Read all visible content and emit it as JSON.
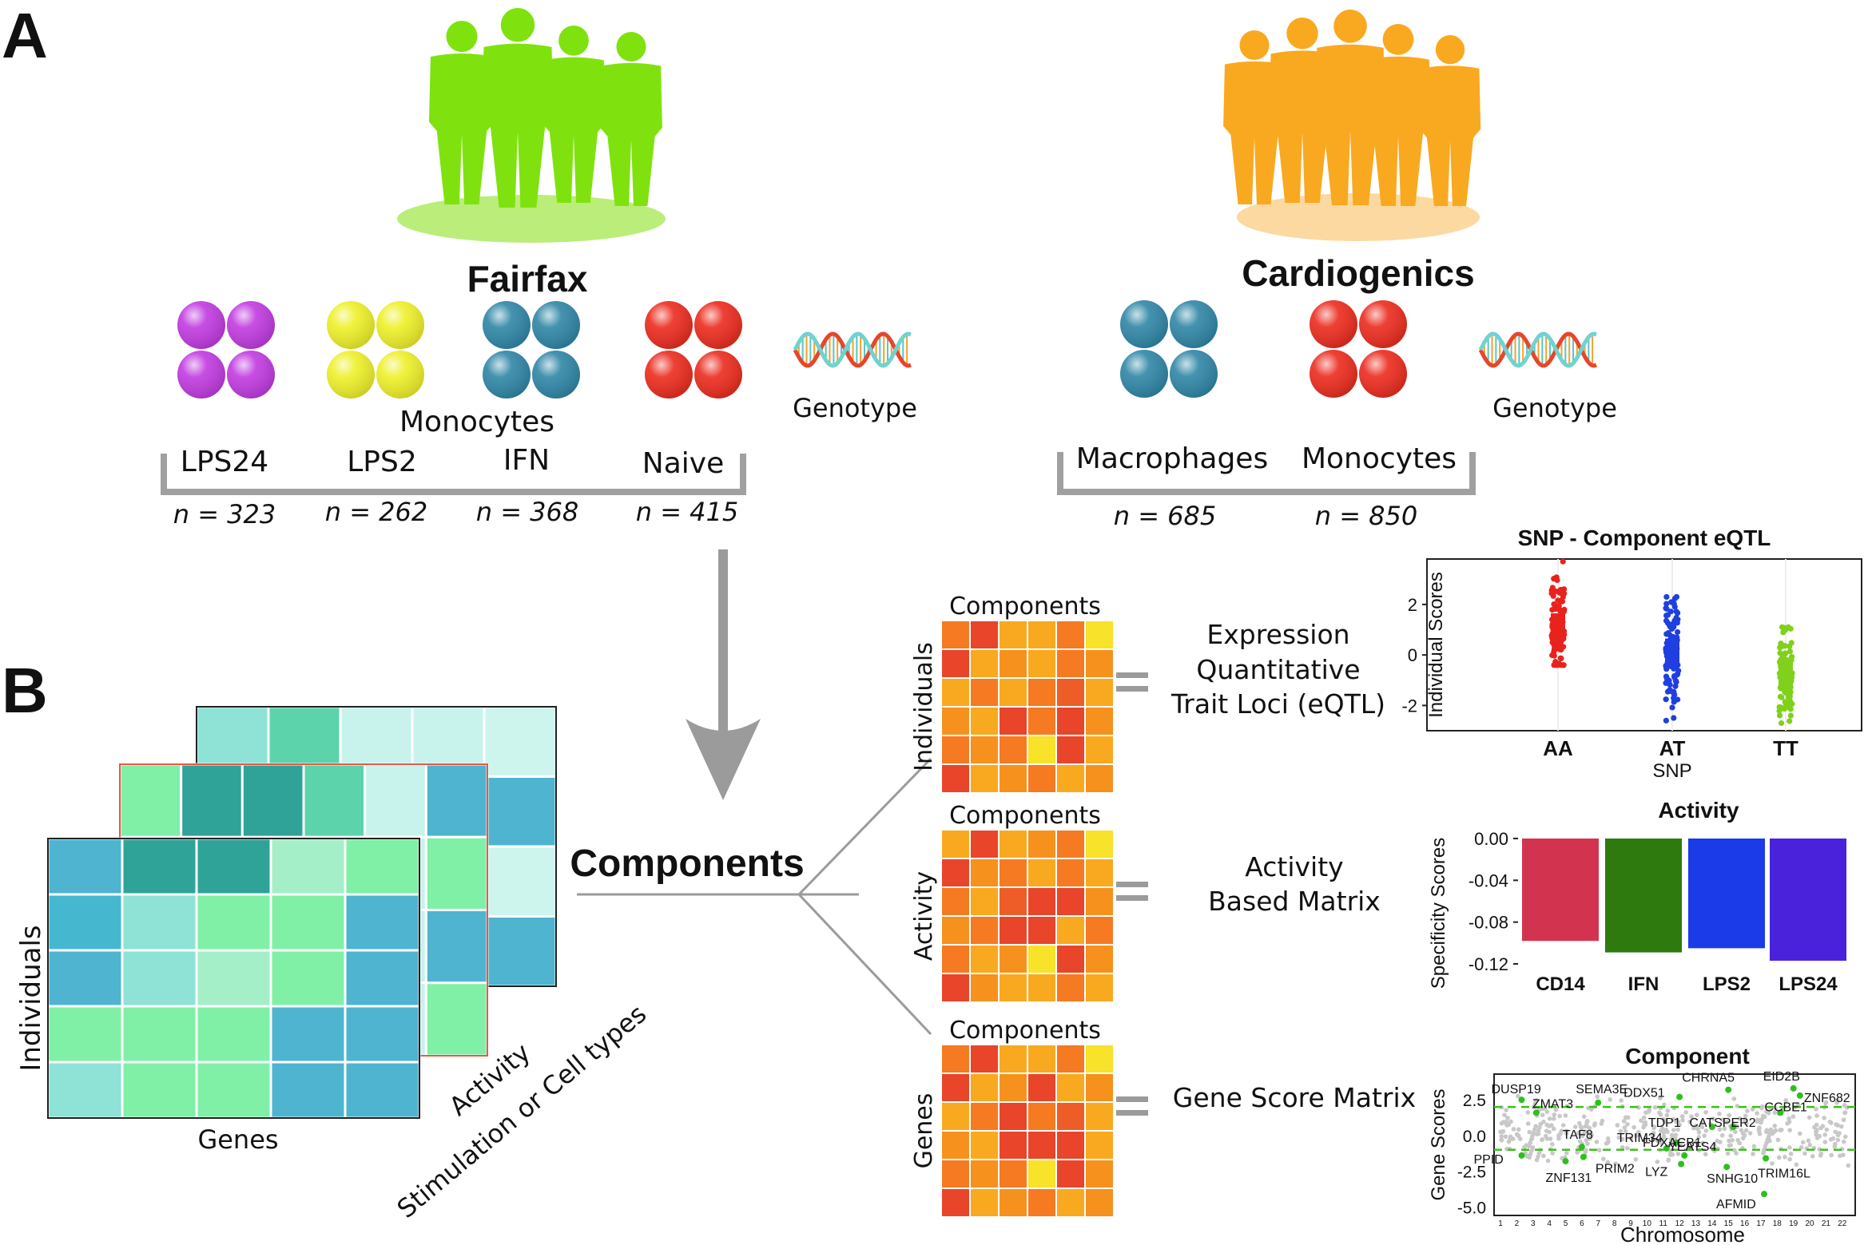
{
  "panel_labels": [
    "A",
    "B"
  ],
  "fairfax": {
    "title": "Fairfax",
    "cell_type": "Monocytes",
    "groups": [
      {
        "label": "LPS24",
        "n": "n = 323",
        "color": "#c13ae0"
      },
      {
        "label": "LPS2",
        "n": "n = 262",
        "color": "#eef028"
      },
      {
        "label": "IFN",
        "n": "n = 368",
        "color": "#2f86a6"
      },
      {
        "label": "Naive",
        "n": "n = 415",
        "color": "#ec2b1e"
      }
    ],
    "genotype_label": "Genotype",
    "silhouette_color": "#7fe20f"
  },
  "cardiogenics": {
    "title": "Cardiogenics",
    "groups": [
      {
        "label": "Macrophages",
        "n": "n = 685",
        "color": "#2f86a6"
      },
      {
        "label": "Monocytes",
        "n": "n = 850",
        "color": "#ec2b1e"
      }
    ],
    "genotype_label": "Genotype",
    "silhouette_color": "#f9a91f"
  },
  "tensor": {
    "axis_individuals": "Individuals",
    "axis_genes": "Genes",
    "axis_activity": "Activity",
    "axis_stim": "Stimulation or Cell types"
  },
  "components_label": "Components",
  "matrices": [
    {
      "col_label": "Components",
      "row_label": "Individuals",
      "result": [
        "Expression",
        "Quantitative",
        "Trait Loci (eQTL)"
      ]
    },
    {
      "col_label": "Components",
      "row_label": "Activity",
      "result": [
        "Activity",
        "Based Matrix"
      ]
    },
    {
      "col_label": "Components",
      "row_label": "Genes",
      "result": [
        "Gene Score Matrix"
      ]
    }
  ],
  "heat_colors": [
    "#f9a91f",
    "#f57a21",
    "#e8452a",
    "#f8e22a",
    "#f6911e",
    "#ee5d28"
  ],
  "chart_data": [
    {
      "type": "scatter",
      "title": "SNP - Component eQTL",
      "xlabel": "SNP",
      "ylabel": "Individual Scores",
      "categories": [
        "AA",
        "AT",
        "TT"
      ],
      "yticks": [
        "2",
        "0",
        "-2"
      ],
      "ylim": [
        -3,
        3.8
      ],
      "series": [
        {
          "category": "AA",
          "color": "#e8231d",
          "median": 1.1,
          "min": -0.4,
          "max": 3.7
        },
        {
          "category": "AT",
          "color": "#1f3fe0",
          "median": 0.1,
          "min": -2.6,
          "max": 2.3
        },
        {
          "category": "TT",
          "color": "#7fd11b",
          "median": -0.7,
          "min": -2.7,
          "max": 1.1
        }
      ]
    },
    {
      "type": "bar",
      "title": "Activity",
      "ylabel": "Specificity Scores",
      "categories": [
        "CD14",
        "IFN",
        "LPS2",
        "LPS24"
      ],
      "values": [
        -0.098,
        -0.109,
        -0.105,
        -0.117
      ],
      "colors": [
        "#d2344f",
        "#2e7a0f",
        "#1b3ae8",
        "#4a22dc"
      ],
      "yticks": [
        "0.00",
        "-0.04",
        "-0.08",
        "-0.12"
      ],
      "ylim": [
        -0.12,
        0.0
      ]
    },
    {
      "type": "scatter",
      "title": "Component",
      "xlabel": "Chromosome",
      "ylabel": "Gene Scores",
      "yticks": [
        "2.5",
        "0.0",
        "-2.5",
        "-5.0"
      ],
      "ylim": [
        -5.6,
        4.3
      ],
      "xticks": [
        "1",
        "2",
        "3",
        "4",
        "5",
        "6",
        "7",
        "8",
        "9",
        "10",
        "11",
        "12",
        "13",
        "14",
        "15",
        "16",
        "17",
        "18",
        "19",
        "20",
        "21",
        "22"
      ],
      "thresholds": [
        2.0,
        -1.0
      ],
      "genes": [
        {
          "name": "DUSP19",
          "chr": 2.3,
          "score": 2.5
        },
        {
          "name": "ZMAT3",
          "chr": 3.2,
          "score": 1.6
        },
        {
          "name": "SEMA3E",
          "chr": 7.0,
          "score": 2.3
        },
        {
          "name": "PPID",
          "chr": 2.3,
          "score": -1.4
        },
        {
          "name": "TAF8",
          "chr": 6.0,
          "score": -0.8
        },
        {
          "name": "ZNF131",
          "chr": 5.0,
          "score": -1.8
        },
        {
          "name": "PRIM2",
          "chr": 6.1,
          "score": -1.5
        },
        {
          "name": "DDX51",
          "chr": 12.0,
          "score": 2.7
        },
        {
          "name": "CHRNA5",
          "chr": 15.0,
          "score": 3.2
        },
        {
          "name": "EID2B",
          "chr": 19.0,
          "score": 3.3
        },
        {
          "name": "ZNF682",
          "chr": 19.4,
          "score": 2.8
        },
        {
          "name": "CCBE1",
          "chr": 18.2,
          "score": 1.6
        },
        {
          "name": "TDP1",
          "chr": 14.0,
          "score": 0.6
        },
        {
          "name": "CATSPER2",
          "chr": 15.3,
          "score": 0.6
        },
        {
          "name": "TRIM34",
          "chr": 11.2,
          "score": -0.9
        },
        {
          "name": "FDXACB1",
          "chr": 11.8,
          "score": -0.5
        },
        {
          "name": "YEATS4",
          "chr": 12.3,
          "score": -1.4
        },
        {
          "name": "LYZ",
          "chr": 12.1,
          "score": -2.0
        },
        {
          "name": "SNHG10",
          "chr": 14.9,
          "score": -2.2
        },
        {
          "name": "TRIM16L",
          "chr": 17.3,
          "score": -1.6
        },
        {
          "name": "AFMID",
          "chr": 17.2,
          "score": -4.1
        }
      ]
    }
  ]
}
